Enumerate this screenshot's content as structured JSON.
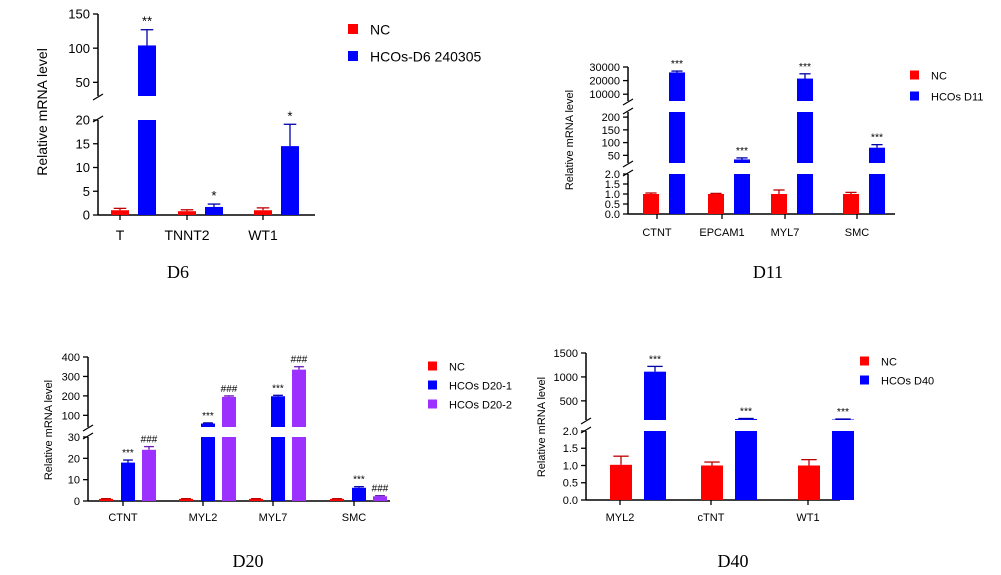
{
  "chart_data": [
    {
      "panel": "D6",
      "type": "bar",
      "caption": "D6",
      "ylabel": "Relative mRNA level",
      "categories": [
        "T",
        "TNNT2",
        "WT1"
      ],
      "series": [
        {
          "name": "NC",
          "color": "#ff0000",
          "values": [
            1.0,
            0.8,
            1.0
          ],
          "errors": [
            0.4,
            0.3,
            0.5
          ],
          "sig": [
            "",
            "",
            ""
          ]
        },
        {
          "name": "HCOs-D6 240305",
          "color": "#0000ff",
          "values": [
            104,
            1.7,
            14.5
          ],
          "errors": [
            23,
            0.6,
            4.6
          ],
          "sig": [
            "**",
            "*",
            "*"
          ]
        }
      ],
      "y_segments": [
        {
          "range": [
            0,
            20
          ],
          "ticks": [
            0,
            5,
            10,
            15,
            20
          ]
        },
        {
          "range": [
            30,
            150
          ],
          "ticks": [
            50,
            100,
            150
          ]
        }
      ]
    },
    {
      "panel": "D11",
      "type": "bar",
      "caption": "D11",
      "ylabel": "Relative mRNA level",
      "categories": [
        "CTNT",
        "EPCAM1",
        "MYL7",
        "SMC"
      ],
      "series": [
        {
          "name": "NC",
          "color": "#ff0000",
          "values": [
            1.0,
            1.0,
            1.0,
            1.0
          ],
          "errors": [
            0.05,
            0.03,
            0.2,
            0.08
          ],
          "sig": [
            "",
            "",
            "",
            ""
          ]
        },
        {
          "name": "HCOs D11",
          "color": "#0000ff",
          "values": [
            26000,
            34,
            21500,
            80
          ],
          "errors": [
            1000,
            6,
            3500,
            12
          ],
          "sig": [
            "***",
            "***",
            "***",
            "***"
          ]
        }
      ],
      "y_segments": [
        {
          "range": [
            0,
            2.0
          ],
          "ticks": [
            0.0,
            0.5,
            1.0,
            1.5,
            2.0
          ]
        },
        {
          "range": [
            20,
            220
          ],
          "ticks": [
            50,
            100,
            150,
            200
          ]
        },
        {
          "range": [
            5000,
            30000
          ],
          "ticks": [
            10000,
            20000,
            30000
          ]
        }
      ]
    },
    {
      "panel": "D20",
      "type": "bar",
      "caption": "D20",
      "ylabel": "Relative mRNA level",
      "categories": [
        "CTNT",
        "MYL2",
        "MYL7",
        "SMC"
      ],
      "series": [
        {
          "name": "NC",
          "color": "#ff0000",
          "values": [
            1.0,
            1.0,
            1.0,
            1.0
          ],
          "errors": [
            0.1,
            0.1,
            0.1,
            0.1
          ],
          "sig": [
            "",
            "",
            "",
            ""
          ]
        },
        {
          "name": "HCOs D20-1",
          "color": "#0000ff",
          "values": [
            18,
            58,
            198,
            6.2
          ],
          "errors": [
            1.2,
            3,
            5,
            0.5
          ],
          "sig": [
            "***",
            "***",
            "***",
            "***"
          ]
        },
        {
          "name": "HCOs D20-2",
          "color": "#9b30ff",
          "values": [
            24,
            195,
            335,
            2.2
          ],
          "errors": [
            1.5,
            5,
            15,
            0.3
          ],
          "sig": [
            "###",
            "###",
            "###",
            "###"
          ]
        }
      ],
      "y_segments": [
        {
          "range": [
            0,
            30
          ],
          "ticks": [
            0,
            10,
            20,
            30
          ]
        },
        {
          "range": [
            40,
            400
          ],
          "ticks": [
            100,
            200,
            300,
            400
          ]
        }
      ]
    },
    {
      "panel": "D40",
      "type": "bar",
      "caption": "D40",
      "ylabel": "Relative mRNA level",
      "categories": [
        "MYL2",
        "cTNT",
        "WT1"
      ],
      "series": [
        {
          "name": "NC",
          "color": "#ff0000",
          "values": [
            1.02,
            1.0,
            1.0
          ],
          "errors": [
            0.25,
            0.1,
            0.17
          ],
          "sig": [
            "",
            "",
            ""
          ]
        },
        {
          "name": "HCOs D40",
          "color": "#0000ff",
          "values": [
            1110,
            120,
            110
          ],
          "errors": [
            110,
            12,
            10
          ],
          "sig": [
            "***",
            "***",
            "***"
          ]
        }
      ],
      "y_segments": [
        {
          "range": [
            0,
            2.0
          ],
          "ticks": [
            0.0,
            0.5,
            1.0,
            1.5,
            2.0
          ]
        },
        {
          "range": [
            100,
            1500
          ],
          "ticks": [
            500,
            1000,
            1500
          ]
        }
      ]
    }
  ]
}
